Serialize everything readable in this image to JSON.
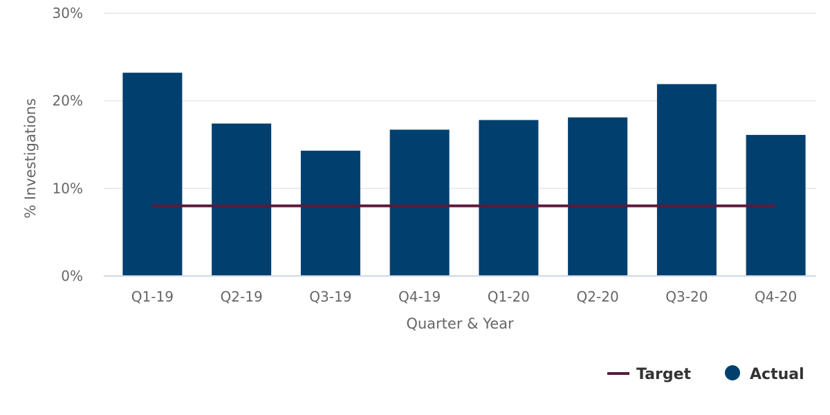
{
  "chart_data": {
    "type": "bar",
    "categories": [
      "Q1-19",
      "Q2-19",
      "Q3-19",
      "Q4-19",
      "Q1-20",
      "Q2-20",
      "Q3-20",
      "Q4-20"
    ],
    "series": [
      {
        "name": "Actual",
        "type": "bar",
        "values": [
          23.2,
          17.4,
          14.3,
          16.7,
          17.8,
          18.1,
          21.9,
          16.1
        ]
      },
      {
        "name": "Target",
        "type": "line",
        "values": [
          8,
          8,
          8,
          8,
          8,
          8,
          8,
          8
        ]
      }
    ],
    "xlabel": "Quarter & Year",
    "ylabel": "% Investigations",
    "ylim": [
      0,
      30
    ],
    "yticks": [
      "0%",
      "10%",
      "20%",
      "30%"
    ],
    "ytick_values": [
      0,
      10,
      20,
      30
    ],
    "grid": true,
    "legend_position": "bottom-right",
    "legend": [
      {
        "name": "Target",
        "symbol": "line"
      },
      {
        "name": "Actual",
        "symbol": "circle"
      }
    ],
    "colors": {
      "Actual": "#003f6e",
      "Target": "#5b1a3c",
      "grid": "#e6e6e6",
      "axis": "#ccd6eb"
    }
  }
}
